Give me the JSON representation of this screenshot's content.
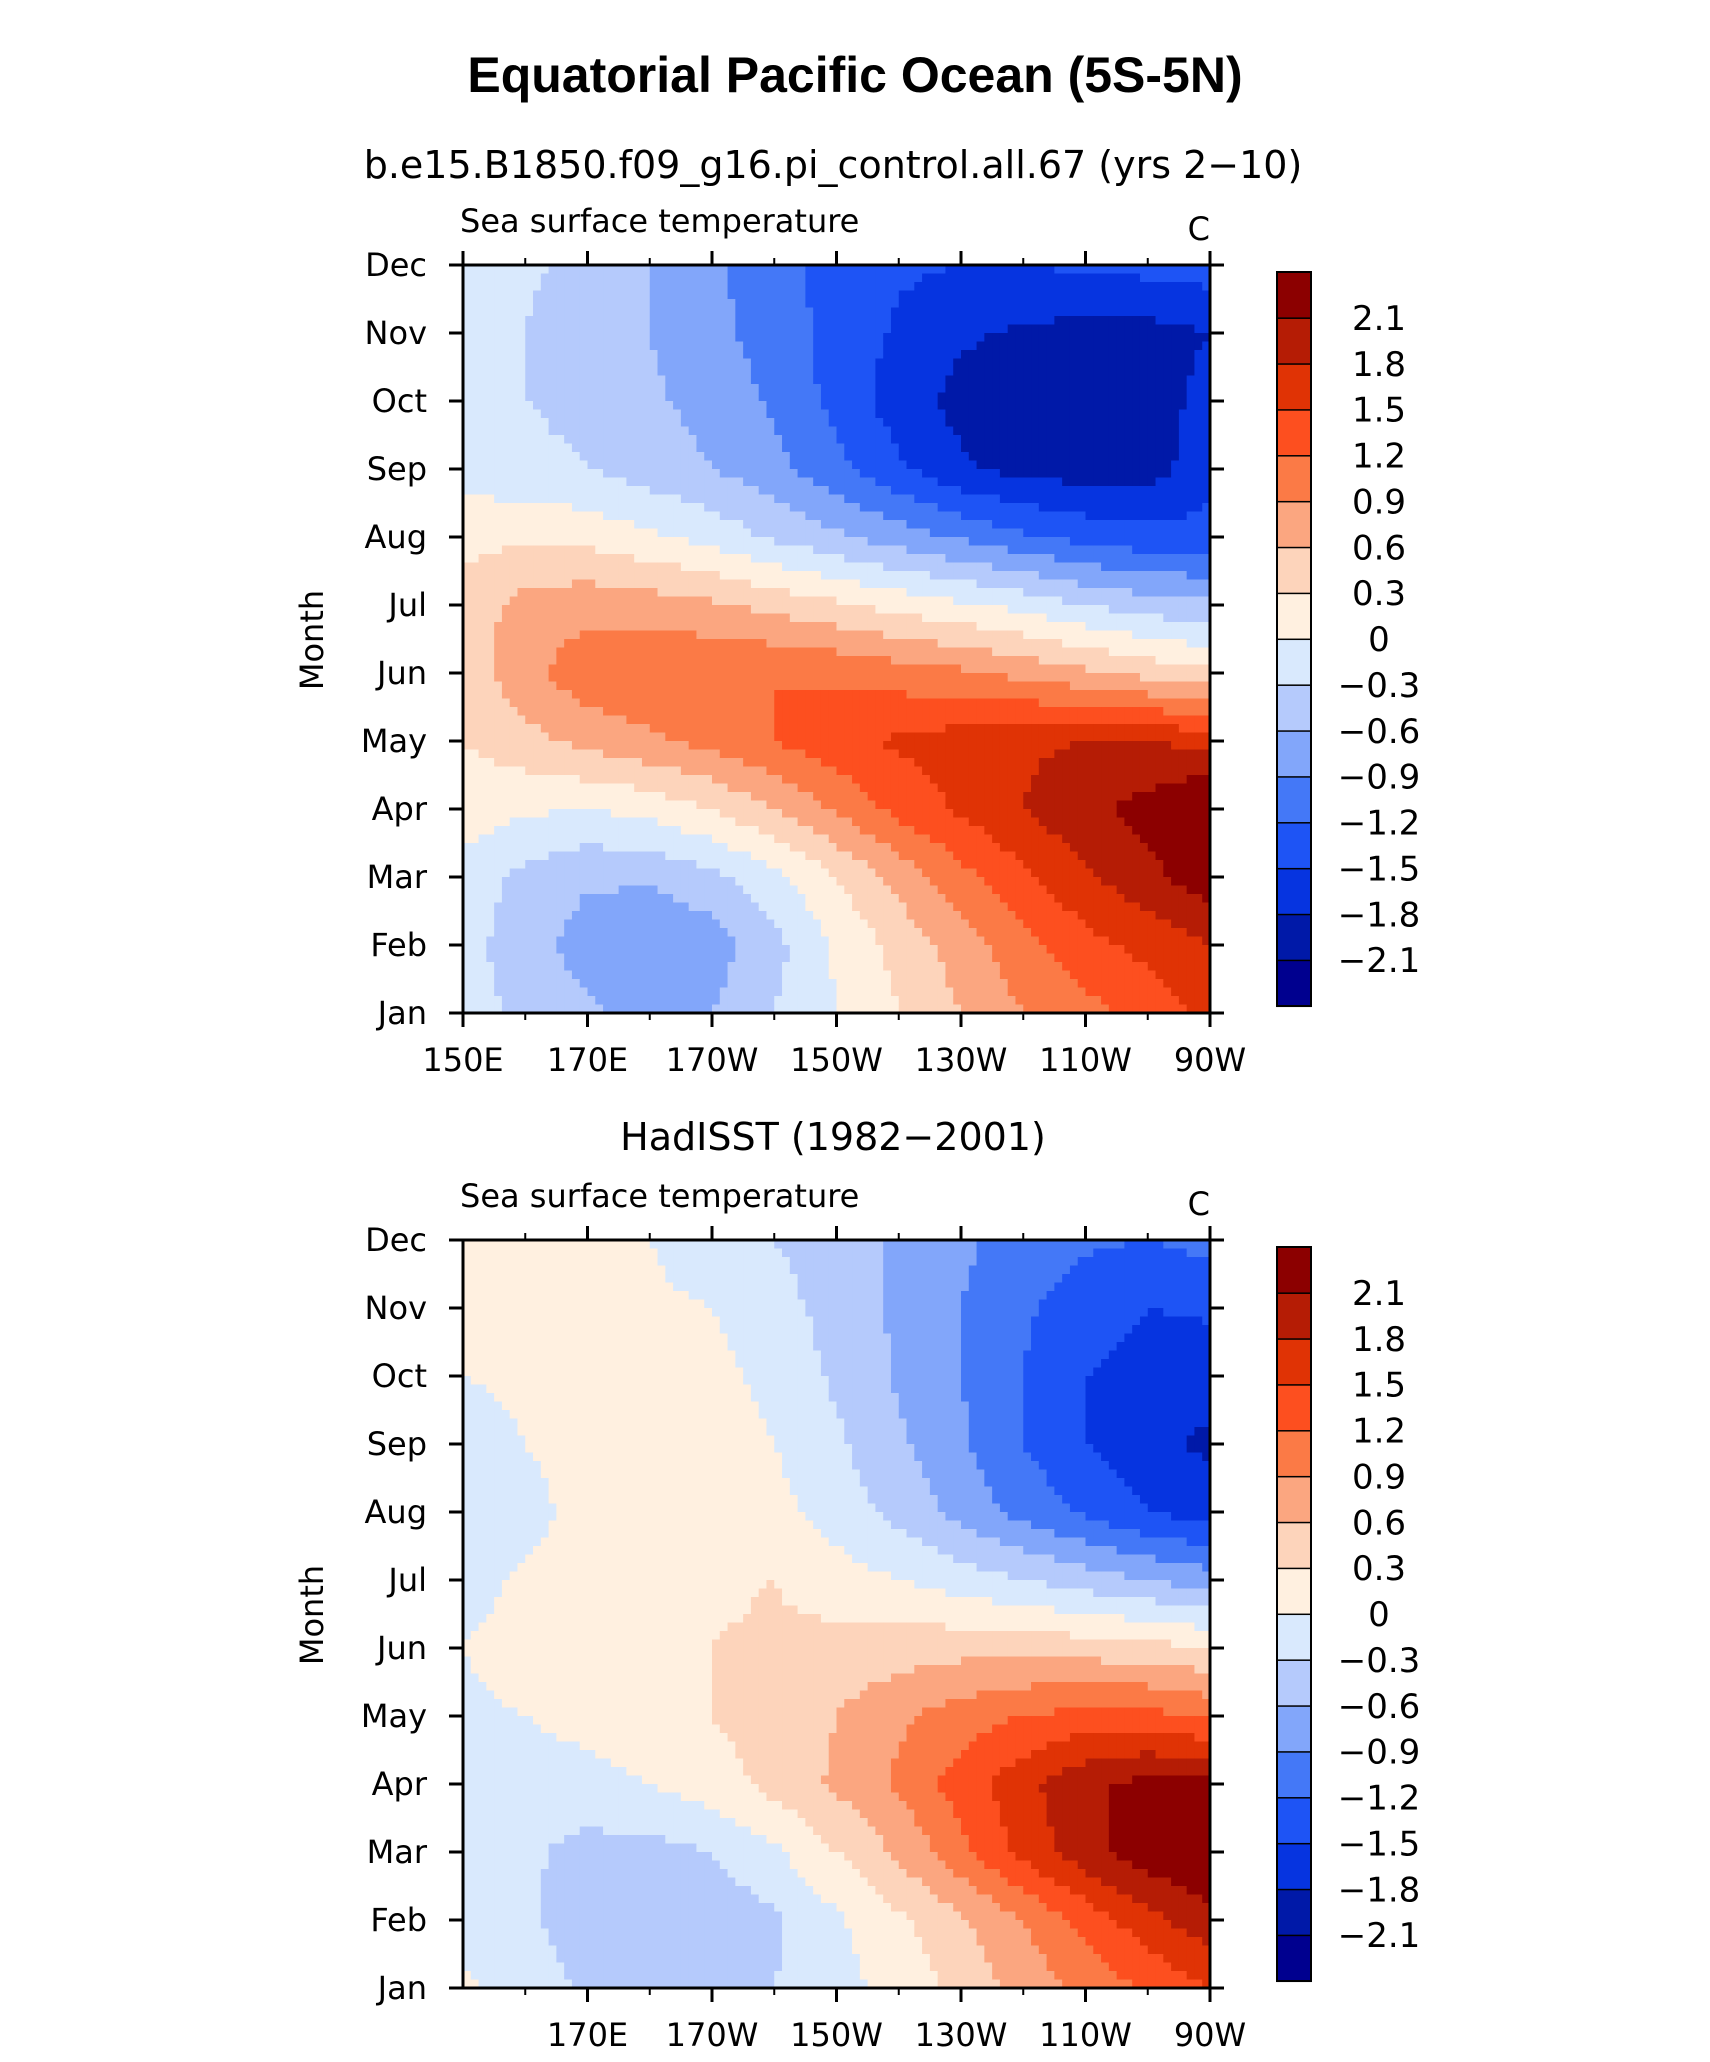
{
  "figure_title": "Equatorial Pacific Ocean (5S-5N)",
  "colors": {
    "levels": [
      "#00008f",
      "#0019a8",
      "#0634e0",
      "#1e54f5",
      "#4478f7",
      "#82a6fa",
      "#b5cafc",
      "#d9e9fd",
      "#fff0e0",
      "#fdd4bb",
      "#fba680",
      "#fb7a46",
      "#fd4f1f",
      "#e03305",
      "#b51c05",
      "#8c0000"
    ]
  },
  "panels": [
    {
      "title": "b.e15.B1850.f09_g16.pi_control.all.67 (yrs 2−10)",
      "left_label": "Sea surface temperature",
      "right_label": "C",
      "ylabel": "Month",
      "x_ticks": [
        "150E",
        "170E",
        "170W",
        "150W",
        "130W",
        "110W",
        "90W"
      ],
      "colorbar_labels": [
        "2.1",
        "1.8",
        "1.5",
        "1.2",
        "0.9",
        "0.6",
        "0.3",
        "0",
        "−0.3",
        "−0.6",
        "−0.9",
        "−1.2",
        "−1.5",
        "−1.8",
        "−2.1"
      ]
    },
    {
      "title": "HadISST (1982−2001)",
      "left_label": "Sea surface temperature",
      "right_label": "C",
      "ylabel": "Month",
      "x_ticks": [
        "170E",
        "170W",
        "150W",
        "130W",
        "110W",
        "90W"
      ],
      "colorbar_labels": [
        "2.1",
        "1.8",
        "1.5",
        "1.2",
        "0.9",
        "0.6",
        "0.3",
        "0",
        "−0.3",
        "−0.6",
        "−0.9",
        "−1.2",
        "−1.5",
        "−1.8",
        "−2.1"
      ]
    }
  ],
  "chart_data": [
    {
      "type": "heatmap",
      "title": "b.e15.B1850.f09_g16.pi_control.all.67 (yrs 2−10)",
      "xlabel": "",
      "ylabel": "Month",
      "xlim": [
        150,
        270
      ],
      "x_tick_values": [
        150,
        170,
        190,
        210,
        230,
        250,
        270
      ],
      "y_categories": [
        "Jan",
        "Feb",
        "Mar",
        "Apr",
        "May",
        "Jun",
        "Jul",
        "Aug",
        "Sep",
        "Oct",
        "Nov",
        "Dec"
      ],
      "contour_levels": [
        -2.1,
        -1.8,
        -1.5,
        -1.2,
        -0.9,
        -0.6,
        -0.3,
        0,
        0.3,
        0.6,
        0.9,
        1.2,
        1.5,
        1.8,
        2.1
      ],
      "x": [
        150,
        160,
        170,
        180,
        190,
        200,
        210,
        220,
        230,
        240,
        250,
        260,
        270
      ],
      "z": [
        [
          -0.2,
          -0.35,
          -0.55,
          -0.75,
          -0.6,
          -0.3,
          0.0,
          0.3,
          0.6,
          0.9,
          1.1,
          1.3,
          1.6
        ],
        [
          -0.2,
          -0.45,
          -0.75,
          -0.9,
          -0.75,
          -0.4,
          0.05,
          0.4,
          0.75,
          1.1,
          1.4,
          1.6,
          1.8
        ],
        [
          -0.1,
          -0.4,
          -0.55,
          -0.55,
          -0.4,
          -0.1,
          0.3,
          0.7,
          1.1,
          1.45,
          1.75,
          2.0,
          2.3
        ],
        [
          0.15,
          0.05,
          0.0,
          0.1,
          0.3,
          0.6,
          0.95,
          1.3,
          1.55,
          1.8,
          2.05,
          2.2,
          2.5
        ],
        [
          0.3,
          0.5,
          0.7,
          0.85,
          1.0,
          1.2,
          1.4,
          1.55,
          1.65,
          1.75,
          1.8,
          1.8,
          1.7
        ],
        [
          0.4,
          0.8,
          1.1,
          1.15,
          1.2,
          1.2,
          1.15,
          1.05,
          0.95,
          0.8,
          0.65,
          0.5,
          0.35
        ],
        [
          0.45,
          0.7,
          0.8,
          0.75,
          0.65,
          0.5,
          0.35,
          0.2,
          0.05,
          -0.1,
          -0.3,
          -0.45,
          -0.55
        ],
        [
          0.2,
          0.25,
          0.2,
          0.05,
          -0.1,
          -0.35,
          -0.55,
          -0.75,
          -0.95,
          -1.15,
          -1.3,
          -1.4,
          -1.4
        ],
        [
          -0.15,
          -0.2,
          -0.3,
          -0.45,
          -0.6,
          -0.8,
          -1.1,
          -1.45,
          -1.75,
          -1.9,
          -1.95,
          -1.95,
          -1.6
        ],
        [
          -0.2,
          -0.3,
          -0.4,
          -0.55,
          -0.7,
          -0.95,
          -1.3,
          -1.65,
          -1.9,
          -2.0,
          -2.0,
          -1.95,
          -1.7
        ],
        [
          -0.2,
          -0.3,
          -0.45,
          -0.6,
          -0.8,
          -1.05,
          -1.3,
          -1.55,
          -1.75,
          -1.85,
          -1.9,
          -1.9,
          -1.8
        ],
        [
          -0.2,
          -0.25,
          -0.4,
          -0.6,
          -0.85,
          -1.1,
          -1.3,
          -1.45,
          -1.5,
          -1.5,
          -1.45,
          -1.4,
          -1.35
        ]
      ]
    },
    {
      "type": "heatmap",
      "title": "HadISST (1982−2001)",
      "xlabel": "",
      "ylabel": "Month",
      "xlim": [
        150,
        270
      ],
      "x_tick_values": [
        170,
        190,
        210,
        230,
        250,
        270
      ],
      "y_categories": [
        "Jan",
        "Feb",
        "Mar",
        "Apr",
        "May",
        "Jun",
        "Jul",
        "Aug",
        "Sep",
        "Oct",
        "Nov",
        "Dec"
      ],
      "contour_levels": [
        -2.1,
        -1.8,
        -1.5,
        -1.2,
        -0.9,
        -0.6,
        -0.3,
        0,
        0.3,
        0.6,
        0.9,
        1.2,
        1.5,
        1.8,
        2.1
      ],
      "x": [
        150,
        160,
        170,
        180,
        190,
        200,
        210,
        220,
        230,
        240,
        250,
        260,
        270
      ],
      "z": [
        [
          0.05,
          -0.15,
          -0.35,
          -0.45,
          -0.4,
          -0.3,
          -0.1,
          0.1,
          0.4,
          0.7,
          1.0,
          1.25,
          1.5
        ],
        [
          -0.1,
          -0.25,
          -0.45,
          -0.55,
          -0.5,
          -0.35,
          -0.05,
          0.25,
          0.55,
          0.9,
          1.3,
          1.7,
          2.0
        ],
        [
          -0.1,
          -0.25,
          -0.4,
          -0.4,
          -0.3,
          -0.05,
          0.3,
          0.65,
          1.1,
          1.6,
          2.0,
          2.3,
          2.4
        ],
        [
          -0.05,
          -0.15,
          -0.1,
          0.0,
          0.15,
          0.4,
          0.65,
          0.95,
          1.35,
          1.7,
          2.05,
          2.2,
          2.2
        ],
        [
          -0.05,
          0.0,
          0.1,
          0.2,
          0.3,
          0.45,
          0.6,
          0.85,
          1.05,
          1.2,
          1.3,
          1.3,
          1.15
        ],
        [
          0.0,
          0.1,
          0.2,
          0.25,
          0.3,
          0.35,
          0.4,
          0.45,
          0.5,
          0.5,
          0.45,
          0.4,
          0.3
        ],
        [
          -0.1,
          0.05,
          0.15,
          0.2,
          0.25,
          0.3,
          0.15,
          0.0,
          -0.15,
          -0.3,
          -0.45,
          -0.6,
          -0.75
        ],
        [
          -0.2,
          -0.1,
          0.1,
          0.2,
          0.2,
          0.1,
          -0.15,
          -0.4,
          -0.7,
          -1.0,
          -1.25,
          -1.5,
          -1.65
        ],
        [
          -0.1,
          0.0,
          0.15,
          0.3,
          0.2,
          0.0,
          -0.25,
          -0.55,
          -0.85,
          -1.2,
          -1.5,
          -1.75,
          -1.85
        ],
        [
          0.0,
          0.05,
          0.1,
          0.15,
          0.1,
          -0.1,
          -0.35,
          -0.65,
          -0.9,
          -1.2,
          -1.5,
          -1.65,
          -1.7
        ],
        [
          0.05,
          0.1,
          0.1,
          0.05,
          0.0,
          -0.2,
          -0.4,
          -0.65,
          -0.9,
          -1.15,
          -1.35,
          -1.5,
          -1.45
        ],
        [
          0.1,
          0.1,
          0.05,
          0.0,
          -0.15,
          -0.3,
          -0.45,
          -0.65,
          -0.85,
          -1.0,
          -1.15,
          -1.2,
          -1.1
        ]
      ]
    }
  ]
}
